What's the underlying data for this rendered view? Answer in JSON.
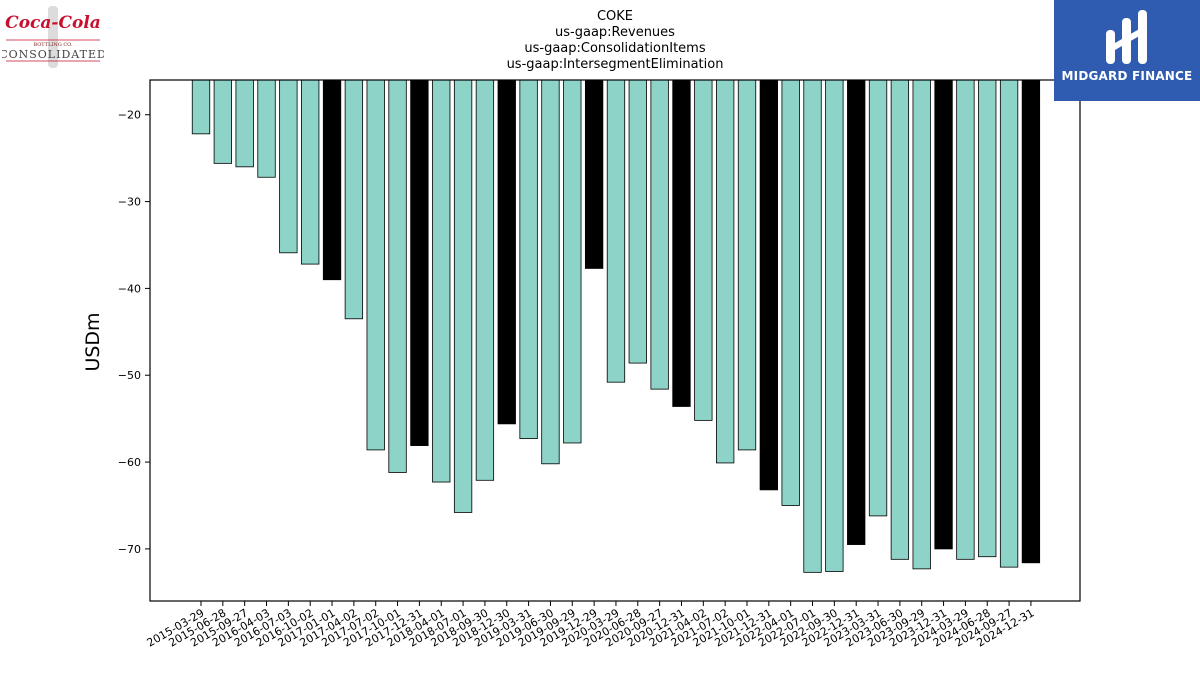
{
  "chart_data": {
    "type": "bar",
    "title_lines": [
      "COKE",
      "us-gaap:Revenues",
      "us-gaap:ConsolidationItems",
      "us-gaap:IntersegmentElimination"
    ],
    "xlabel": "",
    "ylabel": "USDm",
    "ylim": [
      -76,
      -16
    ],
    "yticks": [
      -20,
      -30,
      -40,
      -50,
      -60,
      -70
    ],
    "grid": false,
    "bar_color": "#8dd3c7",
    "highlight_color": "#000000",
    "categories": [
      "2015-03-29",
      "2015-06-28",
      "2015-09-27",
      "2016-04-03",
      "2016-07-03",
      "2016-10-02",
      "2017-01-01",
      "2017-04-02",
      "2017-07-02",
      "2017-10-01",
      "2017-12-31",
      "2018-04-01",
      "2018-07-01",
      "2018-09-30",
      "2018-12-30",
      "2019-03-31",
      "2019-06-30",
      "2019-09-29",
      "2019-12-29",
      "2020-03-29",
      "2020-06-28",
      "2020-09-27",
      "2020-12-31",
      "2021-04-02",
      "2021-07-02",
      "2021-10-01",
      "2021-12-31",
      "2022-04-01",
      "2022-07-01",
      "2022-09-30",
      "2022-12-31",
      "2023-03-31",
      "2023-06-30",
      "2023-09-29",
      "2023-12-31",
      "2024-03-29",
      "2024-06-28",
      "2024-09-27",
      "2024-12-31"
    ],
    "values": [
      -22.2,
      -25.6,
      -26.0,
      -27.2,
      -35.9,
      -37.2,
      -39.0,
      -43.5,
      -58.6,
      -61.2,
      -58.1,
      -62.3,
      -65.8,
      -62.1,
      -55.6,
      -57.3,
      -60.2,
      -57.8,
      -37.7,
      -50.8,
      -48.6,
      -51.6,
      -53.6,
      -55.2,
      -60.1,
      -58.6,
      -63.2,
      -65.0,
      -72.7,
      -72.6,
      -69.5,
      -66.2,
      -71.2,
      -72.3,
      -70.0,
      -71.2,
      -70.9,
      -72.1,
      -71.6
    ],
    "highlighted": [
      false,
      false,
      false,
      false,
      false,
      false,
      true,
      false,
      false,
      false,
      true,
      false,
      false,
      false,
      true,
      false,
      false,
      false,
      true,
      false,
      false,
      false,
      true,
      false,
      false,
      false,
      true,
      false,
      false,
      false,
      true,
      false,
      false,
      false,
      true,
      false,
      false,
      false,
      true
    ]
  },
  "logos": {
    "left": {
      "script": "Coca-Cola",
      "sub": "BOTTLING CO.",
      "name": "CONSOLIDATED"
    },
    "right": {
      "name": "MIDGARD FINANCE",
      "background": "#2f5cb0"
    }
  }
}
